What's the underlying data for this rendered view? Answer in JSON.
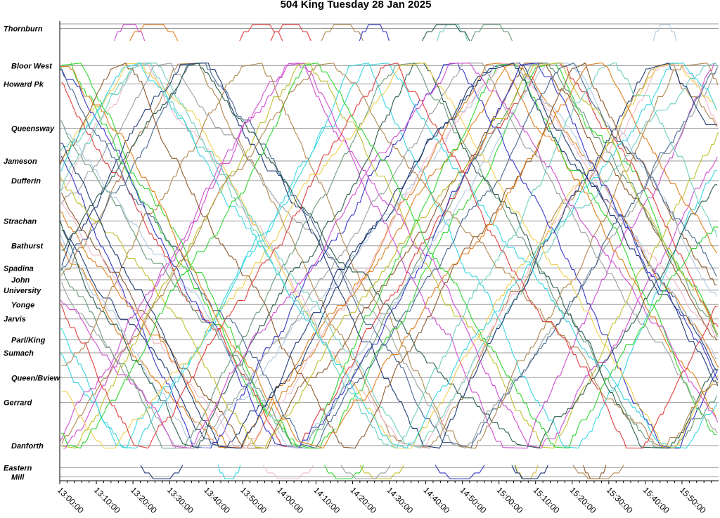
{
  "chart_data": {
    "type": "line",
    "title": "504 King Tuesday 28 Jan 2025",
    "xlabel": "",
    "ylabel": "",
    "x_range": [
      "13:00:00",
      "16:00:00"
    ],
    "x_ticks": [
      "13:00:00",
      "13:10:00",
      "13:20:00",
      "13:30:00",
      "13:40:00",
      "13:50:00",
      "14:00:00",
      "14:10:00",
      "14:20:00",
      "14:30:00",
      "14:40:00",
      "14:50:00",
      "15:00:00",
      "15:10:00",
      "15:20:00",
      "15:30:00",
      "15:40:00",
      "15:50:00"
    ],
    "stops": [
      {
        "name": "Thornburn",
        "lines": [
          0,
          0.35
        ]
      },
      {
        "name": "Bloor West",
        "lines": [
          3.2
        ]
      },
      {
        "name": "Howard Pk",
        "lines": [
          4.6
        ]
      },
      {
        "name": "Queensway",
        "lines": [
          8.0
        ]
      },
      {
        "name": "Jameson",
        "lines": [
          10.5
        ]
      },
      {
        "name": "Dufferin",
        "lines": [
          12.0
        ]
      },
      {
        "name": "Strachan",
        "lines": [
          15.1
        ]
      },
      {
        "name": "Bathurst",
        "lines": [
          17.0
        ]
      },
      {
        "name": "Spadina",
        "lines": [
          18.7
        ]
      },
      {
        "name": "John",
        "lines": [
          19.6
        ]
      },
      {
        "name": "University",
        "lines": [
          20.4
        ]
      },
      {
        "name": "Yonge",
        "lines": [
          21.5
        ]
      },
      {
        "name": "Jarvis",
        "lines": [
          22.6
        ]
      },
      {
        "name": "Parl/King",
        "lines": [
          24.2
        ]
      },
      {
        "name": "Sumach",
        "lines": [
          25.2
        ]
      },
      {
        "name": "Queen/Bview",
        "lines": [
          27.1
        ]
      },
      {
        "name": "Gerrard",
        "lines": [
          29.0
        ]
      },
      {
        "name": "Danforth",
        "lines": [
          32.3
        ]
      },
      {
        "name": "Eastern",
        "lines": [
          34.0
        ]
      },
      {
        "name": "Mill",
        "lines": [
          34.7
        ]
      }
    ],
    "grid": true,
    "legend": "none",
    "colors": [
      "#1f3b73",
      "#e08020",
      "#3ad6e0",
      "#d04fd0",
      "#32d632",
      "#b08850",
      "#9aa0a0",
      "#f0b8c8",
      "#6a9a7a",
      "#f0d050",
      "#3838c8",
      "#8c5a2c",
      "#b0c8e0",
      "#2e5e4e",
      "#c0c030",
      "#e04040",
      "#70d0c0",
      "#486890"
    ]
  }
}
